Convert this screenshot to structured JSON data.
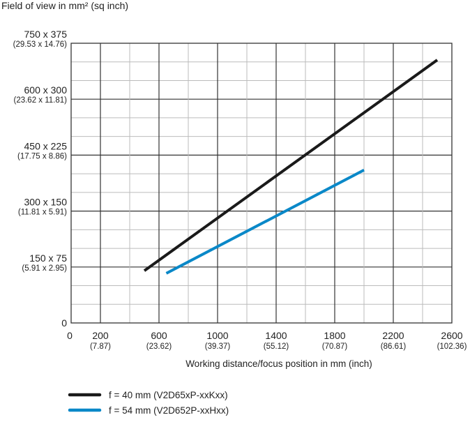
{
  "chart_data": {
    "type": "line",
    "title": "Field of view in mm² (sq inch)",
    "xlabel": "Working distance/focus position in mm (inch)",
    "xlim": [
      0,
      2600
    ],
    "ylim": [
      0,
      750
    ],
    "grid": true,
    "x_ticks": [
      {
        "value": 0,
        "label": "0",
        "sub": ""
      },
      {
        "value": 200,
        "label": "200",
        "sub": "(7.87)"
      },
      {
        "value": 600,
        "label": "600",
        "sub": "(23.62)"
      },
      {
        "value": 1000,
        "label": "1000",
        "sub": "(39.37)"
      },
      {
        "value": 1400,
        "label": "1400",
        "sub": "(55.12)"
      },
      {
        "value": 1800,
        "label": "1800",
        "sub": "(70.87)"
      },
      {
        "value": 2200,
        "label": "2200",
        "sub": "(86.61)"
      },
      {
        "value": 2600,
        "label": "2600",
        "sub": "(102.36)"
      }
    ],
    "y_ticks": [
      {
        "value": 0,
        "label": "0",
        "sub": ""
      },
      {
        "value": 150,
        "label": "150 x 75",
        "sub": "(5.91 x 2.95)"
      },
      {
        "value": 300,
        "label": "300 x 150",
        "sub": "(11.81 x 5.91)"
      },
      {
        "value": 450,
        "label": "450 x 225",
        "sub": "(17.75 x 8.86)"
      },
      {
        "value": 600,
        "label": "600 x 300",
        "sub": "(23.62 x 11.81)"
      },
      {
        "value": 750,
        "label": "750 x 375",
        "sub": "(29.53 x 14.76)"
      }
    ],
    "legend_position": "bottom-left",
    "series": [
      {
        "name": "f = 40 mm (V2D65xP-xxKxx)",
        "color": "#1a1a1a",
        "x": [
          500,
          2500
        ],
        "y": [
          140,
          705
        ]
      },
      {
        "name": "f = 54 mm (V2D652P-xxHxx)",
        "color": "#0a88c8",
        "x": [
          650,
          2000
        ],
        "y": [
          133,
          410
        ]
      }
    ]
  }
}
